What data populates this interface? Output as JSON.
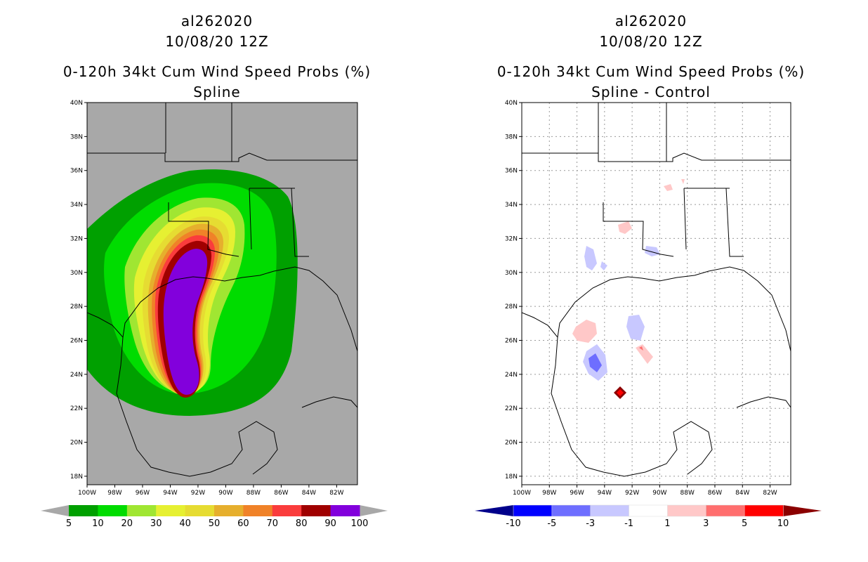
{
  "left_panel": {
    "title_line1": "al262020",
    "title_line2": "10/08/20 12Z",
    "title_line3": "0-120h 34kt Cum Wind Speed Probs (%)",
    "title_line4": "Spline",
    "colorbar_labels": [
      "5",
      "10",
      "20",
      "30",
      "40",
      "50",
      "60",
      "70",
      "80",
      "90",
      "100"
    ],
    "colorbar_colors": [
      "#00a000",
      "#00dc00",
      "#a0e632",
      "#e6f032",
      "#e6dc32",
      "#e6af2d",
      "#f08228",
      "#fa3c3c",
      "#a00000",
      "#8200dc"
    ]
  },
  "right_panel": {
    "title_line1": "al262020",
    "title_line2": "10/08/20 12Z",
    "title_line3": "0-120h 34kt Cum Wind Speed Probs (%)",
    "title_line4": "Spline - Control",
    "colorbar_labels": [
      "-10",
      "-5",
      "-3",
      "-1",
      "1",
      "3",
      "5",
      "10"
    ],
    "colorbar_colors": [
      "#0000ff",
      "#6e6eff",
      "#c8c8ff",
      "#ffffff",
      "#ffc8c8",
      "#ff6e6e",
      "#ff0000"
    ],
    "colorbar_end_colors": [
      "#00008b",
      "#8b0000"
    ]
  },
  "axes": {
    "lat_labels": [
      "40N",
      "38N",
      "36N",
      "34N",
      "32N",
      "30N",
      "28N",
      "26N",
      "24N",
      "22N",
      "20N",
      "18N"
    ],
    "lon_labels": [
      "100W",
      "98W",
      "96W",
      "94W",
      "92W",
      "90W",
      "88W",
      "86W",
      "84W",
      "82W"
    ],
    "lat_range": [
      17.5,
      40
    ],
    "lon_range": [
      -100,
      -80.5
    ]
  },
  "colors": {
    "land_sea_background": "#a8a8a8",
    "difference_background": "#ffffff",
    "outline": "#000000"
  }
}
